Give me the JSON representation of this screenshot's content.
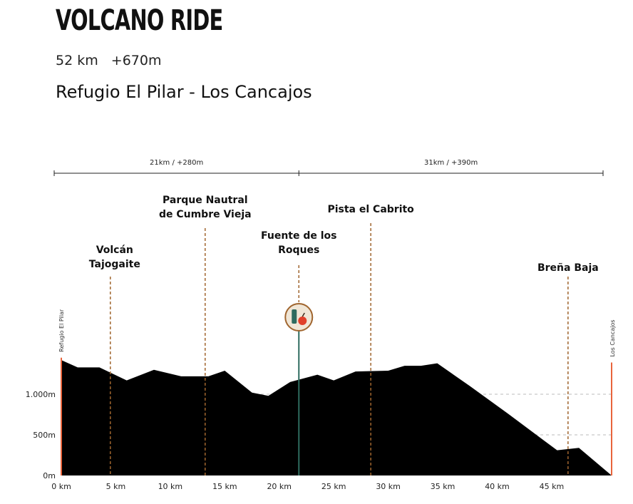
{
  "header": {
    "title": "VOLCANO RIDE",
    "distance": "52 km",
    "elevation_gain": "+670m",
    "route": "Refugio El Pilar - Los Cancajos"
  },
  "colors": {
    "profile_fill": "#000000",
    "endpoint_line": "#e8643c",
    "marker_line": "#a0652e",
    "aid_line": "#2e6b5f",
    "aid_badge_bg": "#f0e6d6",
    "aid_badge_border": "#a0652e",
    "segment_line": "#222222",
    "grid": "#bbbbbb"
  },
  "chart_data": {
    "type": "area",
    "title": "VOLCANO RIDE",
    "xlabel": "",
    "ylabel": "",
    "xlim": [
      0,
      50.5
    ],
    "ylim": [
      0,
      1520
    ],
    "grid": "horizontal dashed at y ticks",
    "x_ticks": [
      0,
      5,
      10,
      15,
      20,
      25,
      30,
      35,
      40,
      45
    ],
    "x_tick_labels": [
      "0 km",
      "5 km",
      "10 km",
      "15 km",
      "20 km",
      "25 km",
      "30 km",
      "35 km",
      "40 km",
      "45 km"
    ],
    "y_ticks": [
      0,
      500,
      1000
    ],
    "y_tick_labels": [
      "0m",
      "500m",
      "1.000m"
    ],
    "profile": {
      "x": [
        0,
        1.5,
        3.5,
        6,
        8.5,
        11,
        13.5,
        15,
        17.5,
        19,
        21,
        23.5,
        25,
        27,
        30,
        31.5,
        33,
        34.5,
        37.5,
        41,
        45.5,
        47.5,
        50.5
      ],
      "y": [
        1420,
        1330,
        1330,
        1170,
        1300,
        1220,
        1220,
        1290,
        1020,
        980,
        1150,
        1240,
        1170,
        1280,
        1290,
        1350,
        1350,
        1380,
        1100,
        760,
        310,
        340,
        0
      ]
    },
    "endpoints": [
      {
        "x": 0,
        "label": "Refugio El Pilar",
        "height": 1450
      },
      {
        "x": 50.5,
        "label": "Los Cancajos",
        "height": 1390
      }
    ],
    "waypoints": [
      {
        "x": 4.5,
        "label_lines": [
          "Volcán",
          "Tajogaite"
        ]
      },
      {
        "x": 13.2,
        "label_lines": [
          "Parque Nautral",
          "de Cumbre Vieja"
        ]
      },
      {
        "x": 21.8,
        "label_lines": [
          "Fuente de los",
          "Roques"
        ],
        "aid_station": true
      },
      {
        "x": 28.4,
        "label_lines": [
          "Pista el Cabrito"
        ]
      },
      {
        "x": 46.5,
        "label_lines": [
          "Breña Baja"
        ]
      }
    ],
    "segments": [
      {
        "from": 0,
        "to": 21.8,
        "label": "21km / +280m"
      },
      {
        "from": 21.8,
        "to": 50.5,
        "label": "31km / +390m"
      }
    ]
  }
}
